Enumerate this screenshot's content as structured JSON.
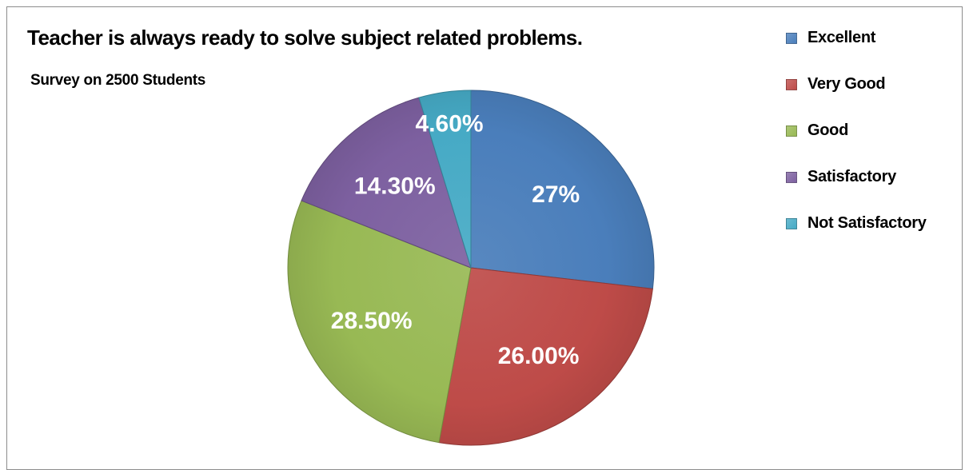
{
  "chart_data": {
    "type": "pie",
    "title": "Teacher is always ready to solve subject related problems.",
    "subtitle": "Survey on 2500 Students",
    "legend_position": "right",
    "categories": [
      "Excellent",
      "Very Good",
      "Good",
      "Satisfactory",
      "Not Satisfactory"
    ],
    "values": [
      27,
      26,
      28.5,
      14.3,
      4.6
    ],
    "data_labels": [
      "27%",
      "26.00%",
      "28.50%",
      "14.30%",
      "4.60%"
    ],
    "colors": [
      "#4a7ebb",
      "#be4b48",
      "#98b954",
      "#7d60a0",
      "#46aac5"
    ]
  }
}
